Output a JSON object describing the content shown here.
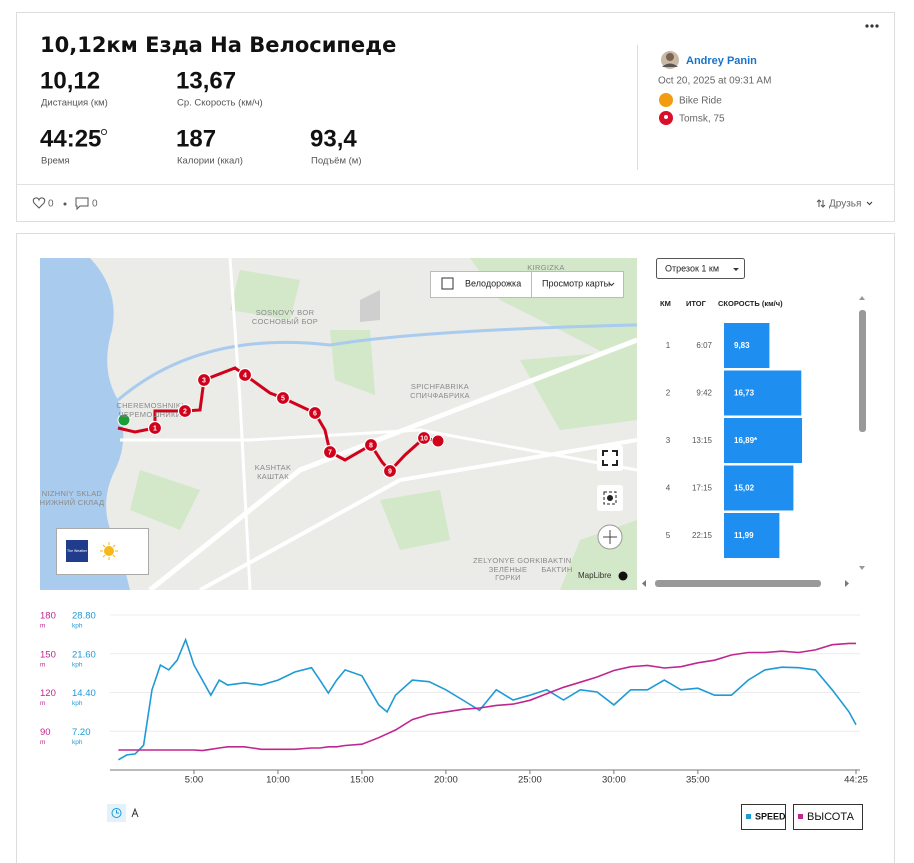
{
  "header": {
    "title": "10,12км Езда На Велосипеде"
  },
  "stats": [
    {
      "value": "10,12",
      "label": "Дистанция (км)"
    },
    {
      "value": "13,67",
      "label": "Ср. Скорость (км/ч)"
    },
    {
      "value": "44:25",
      "label": "Время"
    },
    {
      "value": "187",
      "label": "Калории (ккал)"
    },
    {
      "value": "93,4",
      "label": "Подъём (м)"
    }
  ],
  "athlete": {
    "name": "Andrey Panin",
    "date": "Oct 20, 2025 at 09:31 AM",
    "activity": "Bike Ride",
    "location": "Tomsk, 75"
  },
  "social": {
    "likes": 0,
    "comments": 0,
    "visibility": "Друзья"
  },
  "map": {
    "bike_lane_toggle": "Велодорожка",
    "map_view": "Просмотр карты",
    "places": [
      "KIRGIZKA",
      "SOSNOVY BOR",
      "СОСНОВЫЙ БОР",
      "CHEREMOSHNIKI",
      "ЧЕРЕМОШНИКИ",
      "SPICHFABRIKA",
      "СПИЧФАБРИКА",
      "KASHTAK",
      "КАШТАК",
      "NIZHNIY SKLAD",
      "НИЖНИЙ СКЛАД",
      "ZELYONYE GORKI",
      "ЗЕЛЁНЫЕ",
      "ГОРКИ",
      "BAKTIN",
      "БАКТИН"
    ],
    "markers": [
      1,
      2,
      3,
      4,
      5,
      6,
      7,
      8,
      9,
      10
    ],
    "weather": "The Weather Channel",
    "attribution": "MapLibre"
  },
  "splits": {
    "selector": "Отрезок 1 км",
    "columns": [
      "КМ",
      "ИТОГ",
      "СКОРОСТЬ (км/ч)"
    ],
    "rows": [
      {
        "km": 1,
        "total": "6:07",
        "speed": 9.83,
        "speed_label": "9,83"
      },
      {
        "km": 2,
        "total": "9:42",
        "speed": 16.73,
        "speed_label": "16,73"
      },
      {
        "km": 3,
        "total": "13:15",
        "speed": 16.89,
        "speed_label": "16,89*"
      },
      {
        "km": 4,
        "total": "17:15",
        "speed": 15.02,
        "speed_label": "15,02"
      },
      {
        "km": 5,
        "total": "22:15",
        "speed": 11.99,
        "speed_label": "11,99"
      }
    ]
  },
  "chart_data": {
    "type": "line",
    "x": [
      0.5,
      1,
      1.5,
      2,
      2.5,
      3,
      3.5,
      4,
      4.5,
      5,
      5.5,
      6,
      6.5,
      7,
      8,
      9,
      10,
      11,
      12,
      12.5,
      13,
      13.5,
      14,
      15,
      16,
      16.5,
      17,
      18,
      19,
      20,
      21,
      22,
      23,
      24,
      25,
      26,
      27,
      28,
      29,
      30,
      31,
      32,
      33,
      34,
      35,
      36,
      37,
      38,
      39,
      40,
      41,
      42,
      43,
      44,
      44.4167
    ],
    "xlim": [
      0,
      44.4167
    ],
    "xticks": [
      {
        "value": 5,
        "label": "5:00"
      },
      {
        "value": 10,
        "label": "10:00"
      },
      {
        "value": 15,
        "label": "15:00"
      },
      {
        "value": 20,
        "label": "20:00"
      },
      {
        "value": 25,
        "label": "25:00"
      },
      {
        "value": 30,
        "label": "30:00"
      },
      {
        "value": 35,
        "label": "35:00"
      },
      {
        "value": 44.4167,
        "label": "44:25"
      }
    ],
    "ylim": [
      60,
      180
    ],
    "yticks": [
      90,
      120,
      150,
      180
    ],
    "y_unit": "m",
    "y2lim": [
      0,
      28.8
    ],
    "y2ticks": [
      {
        "value": 7.2,
        "label": "7.20"
      },
      {
        "value": 14.4,
        "label": "14.40"
      },
      {
        "value": 21.6,
        "label": "21.60"
      },
      {
        "value": 28.8,
        "label": "28.80"
      }
    ],
    "y2_unit": "kph",
    "grid": true,
    "series": [
      {
        "name": "SPEED",
        "color": "#1e9ad6",
        "axis": "y2",
        "values": [
          1.9,
          2.8,
          3.0,
          4.6,
          14.9,
          19.5,
          18.6,
          20.4,
          24.2,
          19.5,
          16.7,
          13.9,
          16.7,
          15.8,
          16.2,
          15.8,
          16.7,
          18.2,
          19.0,
          16.7,
          14.3,
          16.7,
          18.6,
          17.5,
          12.1,
          10.8,
          13.9,
          16.7,
          16.4,
          14.9,
          13.0,
          11.1,
          14.9,
          13.0,
          13.9,
          14.9,
          13.0,
          14.9,
          14.5,
          12.1,
          14.9,
          14.9,
          16.7,
          14.9,
          15.2,
          13.9,
          13.9,
          16.7,
          18.6,
          19.1,
          19.0,
          18.6,
          14.9,
          10.8,
          8.4
        ]
      },
      {
        "name": "ВЫСОТА",
        "color": "#c0268f",
        "values": [
          75.5,
          75.5,
          75.5,
          75.5,
          75.5,
          75.5,
          75.5,
          75.5,
          75.5,
          75.5,
          75,
          76,
          77,
          78,
          78,
          76,
          76,
          76,
          77,
          77,
          78,
          78,
          79,
          80,
          85,
          88,
          91,
          99,
          103,
          105,
          107,
          108,
          110,
          111,
          114,
          119,
          124,
          128,
          132,
          137,
          140,
          141,
          139,
          140,
          143,
          145,
          149,
          151,
          151,
          152,
          151,
          153,
          157,
          158,
          158
        ]
      }
    ]
  }
}
